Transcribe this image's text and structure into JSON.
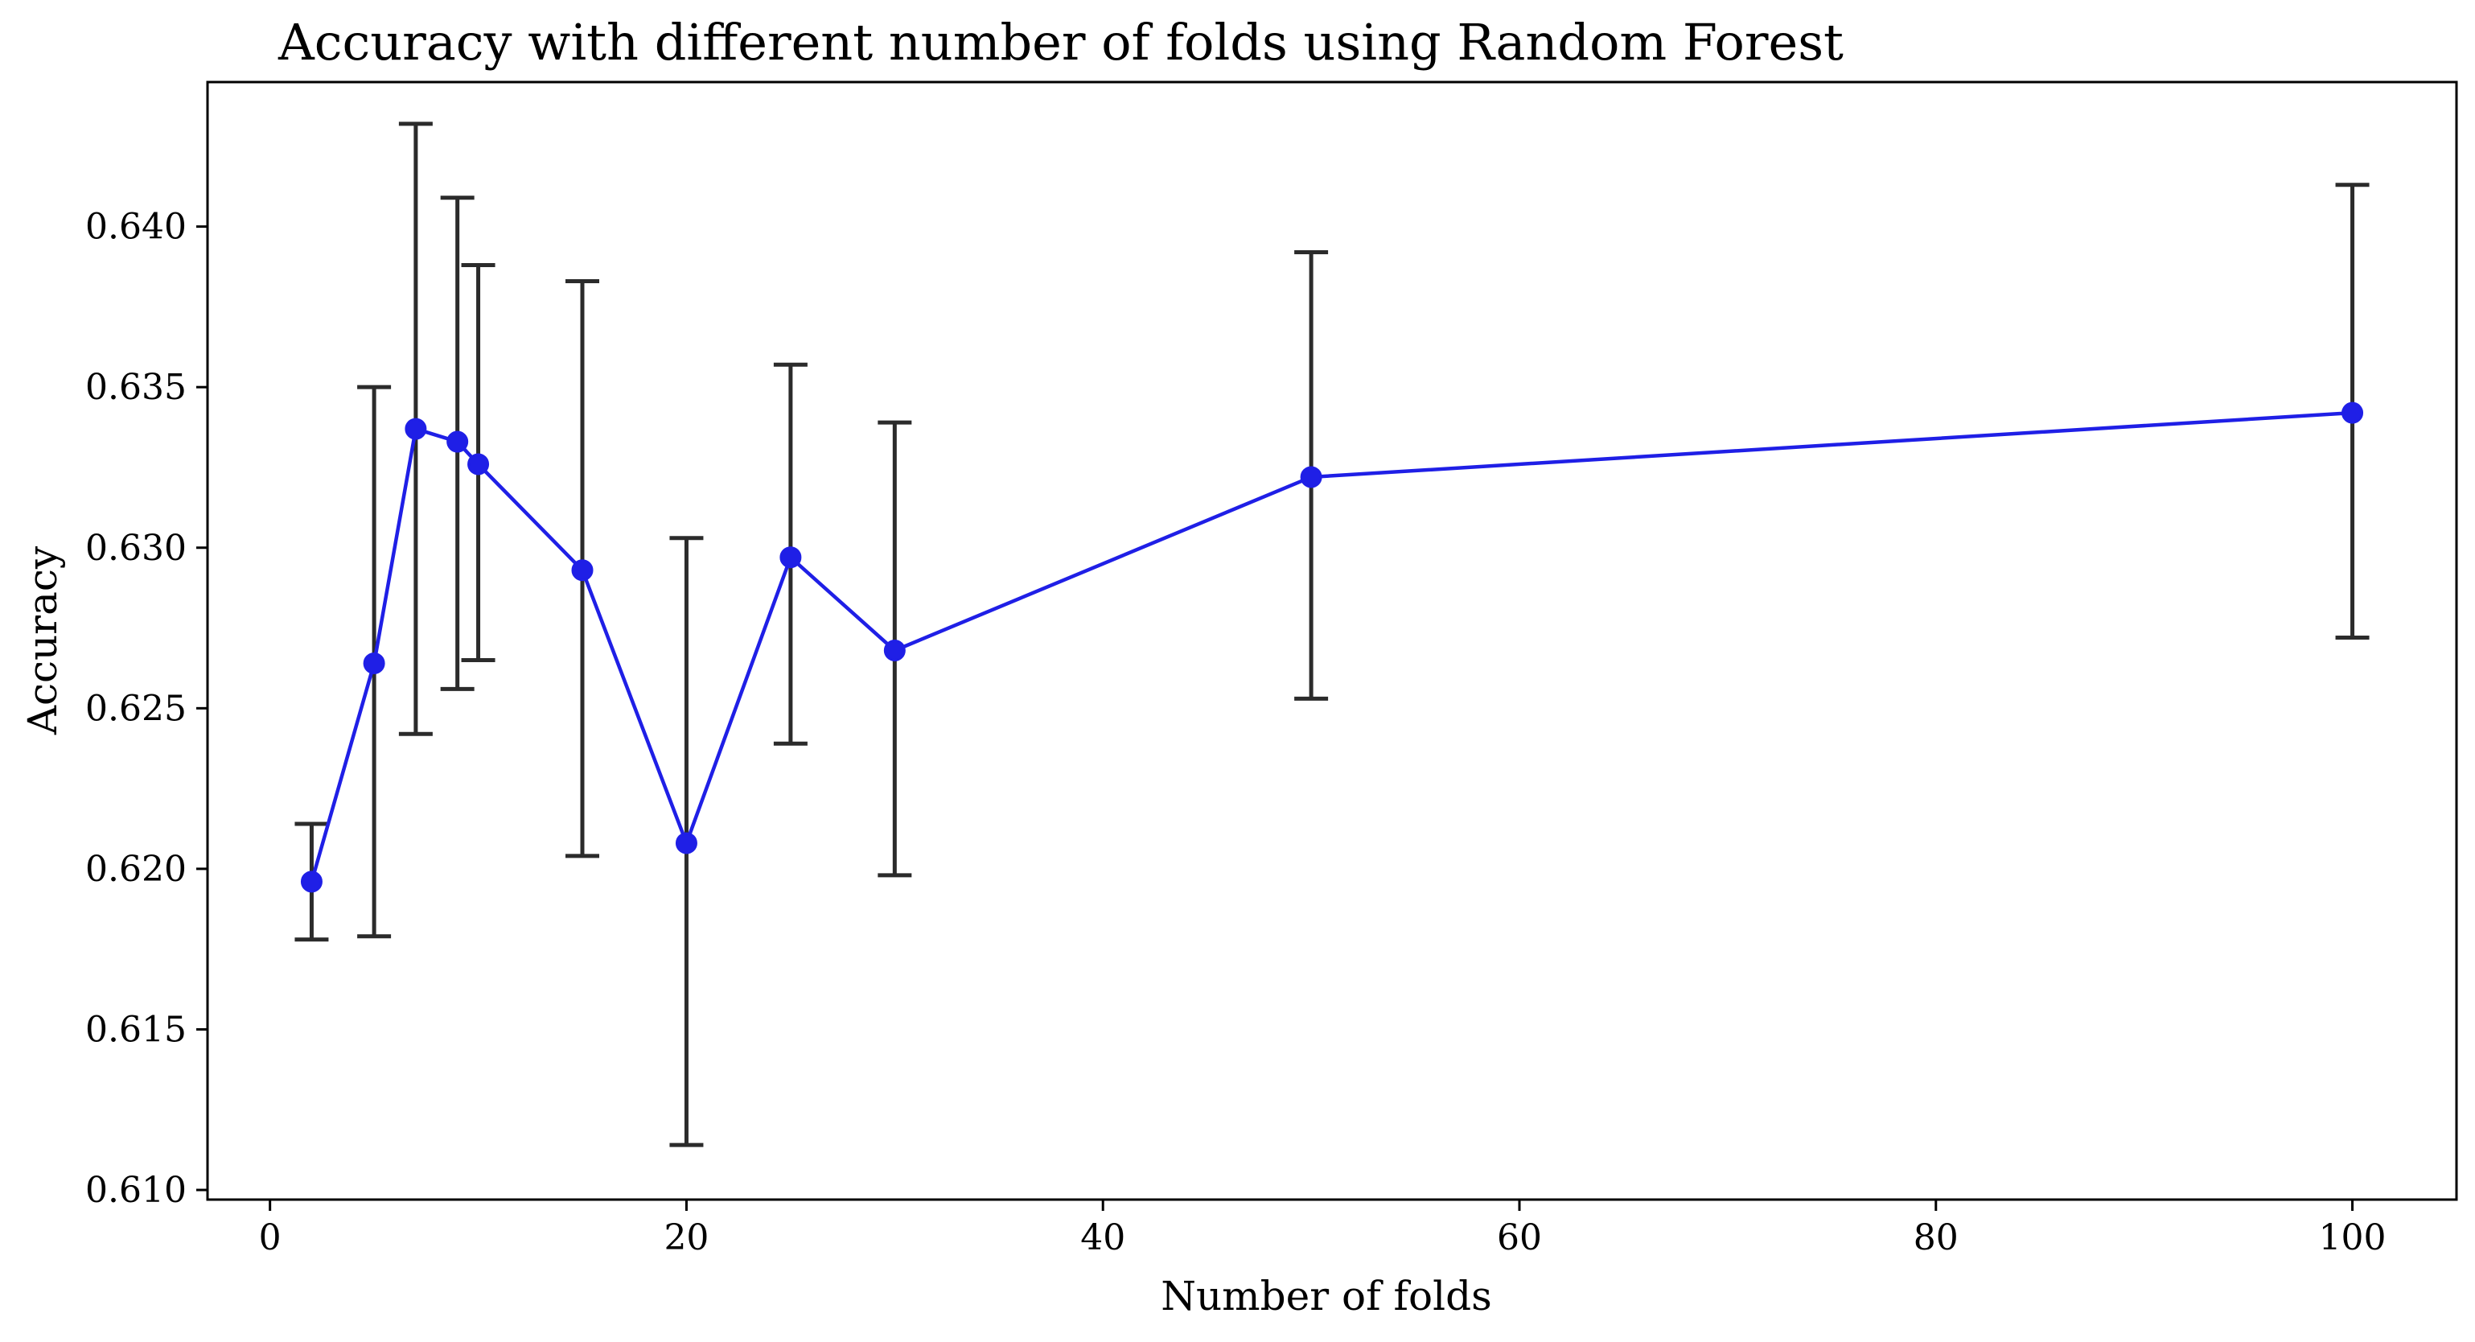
{
  "chart_data": {
    "type": "line",
    "title": "Accuracy with different number of folds using Random Forest",
    "xlabel": "Number of folds",
    "ylabel": "Accuracy",
    "xlim": [
      -3,
      105
    ],
    "ylim": [
      0.6097,
      0.6445
    ],
    "xticks": [
      0,
      20,
      40,
      60,
      80,
      100
    ],
    "xtick_labels": [
      "0",
      "20",
      "40",
      "60",
      "80",
      "100"
    ],
    "yticks": [
      0.61,
      0.615,
      0.62,
      0.625,
      0.63,
      0.635,
      0.64
    ],
    "ytick_labels": [
      "0.610",
      "0.615",
      "0.620",
      "0.625",
      "0.630",
      "0.635",
      "0.640"
    ],
    "grid": false,
    "series": [
      {
        "x": [
          2,
          5,
          7,
          9,
          10,
          15,
          20,
          25,
          30,
          50,
          100
        ],
        "y": [
          0.6196,
          0.6264,
          0.6337,
          0.6333,
          0.6326,
          0.6293,
          0.6208,
          0.6297,
          0.6268,
          0.6322,
          0.6342
        ],
        "err_lower": [
          0.6178,
          0.6179,
          0.6242,
          0.6256,
          0.6265,
          0.6204,
          0.6114,
          0.6239,
          0.6198,
          0.6253,
          0.6272
        ],
        "err_upper": [
          0.6214,
          0.635,
          0.6432,
          0.6409,
          0.6388,
          0.6383,
          0.6303,
          0.6357,
          0.6339,
          0.6392,
          0.6413
        ],
        "color": "#1f1fe6"
      }
    ],
    "errorbar_color": "#2b2b2b"
  }
}
